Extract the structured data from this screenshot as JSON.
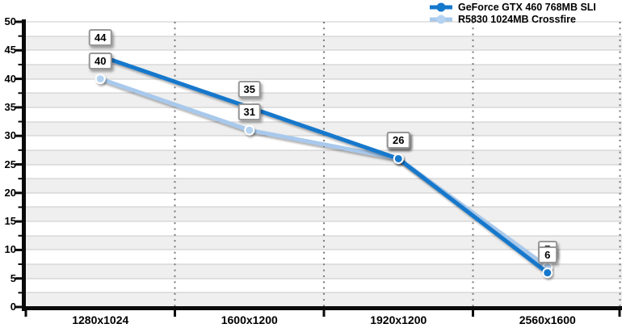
{
  "chart_data": {
    "type": "line",
    "title": "",
    "xlabel": "",
    "ylabel": "",
    "categories": [
      "1280x1024",
      "1600x1200",
      "1920x1200",
      "2560x1600"
    ],
    "series": [
      {
        "name": "GeForce GTX 460 768MB SLI",
        "color": "#1478cc",
        "point_color": "#1478cc",
        "values": [
          44,
          35,
          26,
          6
        ]
      },
      {
        "name": "R5830 1024MB Crossfire",
        "color": "#a8c9ec",
        "point_color": "#b5d3f1",
        "values": [
          40,
          31,
          26,
          7
        ]
      }
    ],
    "data_labels": {
      "series_0": [
        "44",
        "35",
        "26",
        "6"
      ],
      "series_1": [
        "40",
        "31",
        "26",
        "7"
      ]
    },
    "ylim": [
      0,
      50
    ],
    "ytick_step": 5,
    "yticks": [
      "0",
      "5",
      "10",
      "15",
      "20",
      "25",
      "30",
      "35",
      "40",
      "45",
      "50"
    ],
    "minor_band_step": 2.5,
    "grid": "alternating horizontal bands every 2.5 units, dotted vertical lines at category boundaries",
    "legend_position": "top-right"
  },
  "colors": {
    "band_gray": "#efefef",
    "band_white": "#ffffff",
    "hgrid_line": "#c9c9c9",
    "vdot_line": "#7a7a7a",
    "axis_black": "#0a0a0a",
    "callout_border": "#979797",
    "callout_bg": "#ffffff",
    "point_ring": "#ffffff"
  }
}
